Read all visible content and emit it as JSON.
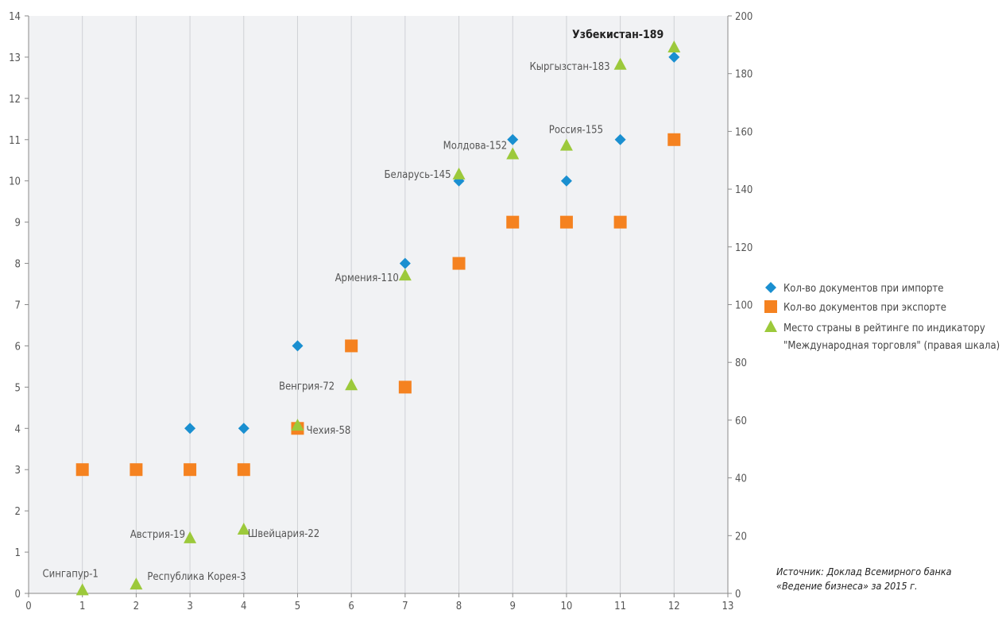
{
  "chart_data": {
    "type": "scatter",
    "x_axis": {
      "min": 0,
      "max": 13,
      "ticks": [
        "0",
        "1",
        "2",
        "3",
        "4",
        "5",
        "6",
        "7",
        "8",
        "9",
        "10",
        "11",
        "12",
        "13"
      ]
    },
    "y_left": {
      "min": 0,
      "max": 14,
      "ticks": [
        "0",
        "1",
        "2",
        "3",
        "4",
        "5",
        "6",
        "7",
        "8",
        "9",
        "10",
        "11",
        "12",
        "13",
        "14"
      ]
    },
    "y_right": {
      "min": 0,
      "max": 200,
      "ticks": [
        "0",
        "20",
        "40",
        "60",
        "80",
        "100",
        "120",
        "140",
        "160",
        "180",
        "200"
      ]
    },
    "grid": "vertical",
    "legend_position": "right",
    "series": [
      {
        "name": "Кол-во документов при импорте",
        "marker": "diamond",
        "color": "#1a8fd0",
        "axis": "left",
        "points": [
          [
            3,
            4
          ],
          [
            4,
            4
          ],
          [
            5,
            6
          ],
          [
            7,
            8
          ],
          [
            8,
            10
          ],
          [
            9,
            11
          ],
          [
            10,
            10
          ],
          [
            11,
            11
          ],
          [
            12,
            13
          ]
        ]
      },
      {
        "name": "Кол-во документов при экспорте",
        "marker": "square",
        "color": "#f58220",
        "axis": "left",
        "points": [
          [
            1,
            3
          ],
          [
            2,
            3
          ],
          [
            3,
            3
          ],
          [
            4,
            3
          ],
          [
            5,
            4
          ],
          [
            6,
            6
          ],
          [
            7,
            5
          ],
          [
            8,
            8
          ],
          [
            9,
            9
          ],
          [
            10,
            9
          ],
          [
            11,
            9
          ],
          [
            12,
            11
          ]
        ]
      },
      {
        "name": "Место страны в рейтинге по индикатору",
        "name_line2": "\"Международная торговля\" (правая шкала)",
        "marker": "triangle",
        "color": "#9cc93b",
        "axis": "right",
        "points": [
          [
            1,
            1
          ],
          [
            2,
            3
          ],
          [
            3,
            19
          ],
          [
            4,
            22
          ],
          [
            5,
            58
          ],
          [
            6,
            72
          ],
          [
            7,
            110
          ],
          [
            8,
            145
          ],
          [
            9,
            152
          ],
          [
            10,
            155
          ],
          [
            11,
            183
          ],
          [
            12,
            189
          ]
        ]
      }
    ],
    "annotations": [
      {
        "text": "Сингапур-1",
        "x": 1,
        "y": 1,
        "anchor": "middle",
        "dx": -15,
        "dy": -17
      },
      {
        "text": "Республика Корея-3",
        "x": 2,
        "y": 3,
        "anchor": "start",
        "dx": 14,
        "dy": -6
      },
      {
        "text": "Австрия-19",
        "x": 3,
        "y": 19,
        "anchor": "end",
        "dx": -6,
        "dy": -1
      },
      {
        "text": "Швейцария-22",
        "x": 4,
        "y": 22,
        "anchor": "start",
        "dx": 5,
        "dy": 9
      },
      {
        "text": "Чехия-58",
        "x": 5,
        "y": 58,
        "anchor": "start",
        "dx": 11,
        "dy": 10
      },
      {
        "text": "Венгрия-72",
        "x": 6,
        "y": 72,
        "anchor": "end",
        "dx": -21,
        "dy": 5
      },
      {
        "text": "Армения-110",
        "x": 7,
        "y": 110,
        "anchor": "end",
        "dx": -8,
        "dy": 7
      },
      {
        "text": "Беларусь-145",
        "x": 8,
        "y": 145,
        "anchor": "end",
        "dx": -10,
        "dy": 4
      },
      {
        "text": "Молдова-152",
        "x": 9,
        "y": 152,
        "anchor": "end",
        "dx": -7,
        "dy": -7
      },
      {
        "text": "Россия-155",
        "x": 10,
        "y": 155,
        "anchor": "middle",
        "dx": 12,
        "dy": -16
      },
      {
        "text": "Кыргызстан-183",
        "x": 11,
        "y": 183,
        "anchor": "end",
        "dx": -13,
        "dy": 6
      },
      {
        "text": "Узбекистан-189",
        "x": 12,
        "y": 189,
        "anchor": "end",
        "dx": -13,
        "dy": -12,
        "bold": true
      }
    ],
    "source": [
      "Источник: Доклад Всемирного банка",
      "«Ведение бизнеса» за 2015 г."
    ]
  }
}
